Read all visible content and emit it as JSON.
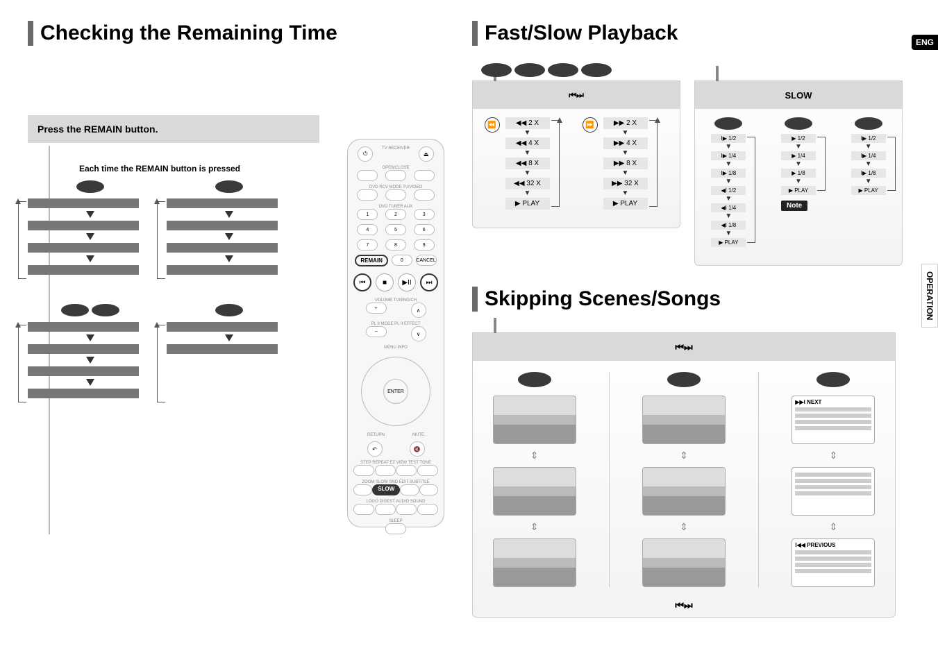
{
  "lang_badge": "ENG",
  "side_tab": "OPERATION",
  "left": {
    "title": "Checking the Remaining Time",
    "instruction": "Press the REMAIN button.",
    "sub_instruction": "Each time the REMAIN button is pressed",
    "blocks": [
      {
        "pills": 1,
        "rows": 4
      },
      {
        "pills": 1,
        "rows": 4
      },
      {
        "pills": 2,
        "rows": 4
      },
      {
        "pills": 1,
        "rows": 2
      }
    ]
  },
  "remote": {
    "top_labels": [
      "OPEN/CLOSE"
    ],
    "mode_row": [
      "TV",
      "RECEIVER"
    ],
    "src_row1": [
      "DVD RCV",
      "MODE",
      "TV/VIDEO"
    ],
    "src_row2": [
      "DVD",
      "TUNER",
      "AUX"
    ],
    "numpad": [
      [
        "1",
        "2",
        "3"
      ],
      [
        "4",
        "5",
        "6"
      ],
      [
        "7",
        "8",
        "9"
      ]
    ],
    "remain_row": {
      "remain": "REMAIN",
      "zero": "0",
      "cancel": "CANCEL"
    },
    "transport": {
      "prev": "⏮",
      "stop": "■",
      "play": "▶II",
      "next": "⏭"
    },
    "vol_labels": [
      "VOLUME",
      "TUNING/CH"
    ],
    "plii_left": "PL II MODE",
    "plii_right": "PL II EFFECT",
    "dpad_center": "ENTER",
    "return": "RETURN",
    "mute": "MUTE",
    "menu": "MENU",
    "info": "INFO",
    "bottom_grid": [
      [
        "STEP",
        "REPEAT",
        "EZ VIEW",
        "TEST TONE"
      ],
      [
        "ZOOM",
        "SLOW",
        "SND EDIT",
        "SUBTITLE"
      ],
      [
        "LOGO",
        "DIGEST",
        "AUDIO",
        "SOUND"
      ]
    ],
    "sleep": "SLEEP",
    "highlight_transport": [
      "prev",
      "next"
    ],
    "highlight_remain": true,
    "highlight_slow": true
  },
  "right": {
    "title_fast": "Fast/Slow Playback",
    "title_skip": "Skipping Scenes/Songs",
    "fast_panel": {
      "head_icons": "⏮⏭",
      "head_pills": 4,
      "rew": {
        "icon": "⏪",
        "steps": [
          "◀◀  2 X",
          "◀◀  4 X",
          "◀◀  8 X",
          "◀◀  32 X",
          "▶  PLAY"
        ]
      },
      "ff": {
        "icon": "⏩",
        "steps": [
          "▶▶  2 X",
          "▶▶  4 X",
          "▶▶  8 X",
          "▶▶  32 X",
          "▶  PLAY"
        ]
      }
    },
    "slow_panel": {
      "head_label": "SLOW",
      "head_pills_groups": [
        1,
        1,
        1
      ],
      "columns": [
        {
          "steps": [
            "I▶  1/2",
            "I▶  1/4",
            "I▶  1/8",
            "◀I  1/2",
            "◀I  1/4",
            "◀I  1/8",
            "▶  PLAY"
          ]
        },
        {
          "steps": [
            "▶  1/2",
            "▶  1/4",
            "▶  1/8",
            "▶  PLAY"
          ],
          "note": "Note"
        },
        {
          "steps": [
            "I▶  1/2",
            "I▶  1/4",
            "I▶  1/8",
            "▶  PLAY"
          ]
        }
      ]
    },
    "skip_panel": {
      "head_icons": "⏮⏭",
      "foot_icons": "⏮⏭",
      "columns": [
        {
          "pills": 1,
          "thumbs": [
            "img",
            "img",
            "img"
          ]
        },
        {
          "pills": 1,
          "thumbs": [
            "img",
            "img",
            "img"
          ]
        },
        {
          "pills": 1,
          "screens": [
            {
              "hdr": "▶▶I NEXT"
            },
            {
              "hdr": ""
            },
            {
              "hdr": "I◀◀ PREVIOUS"
            }
          ]
        }
      ]
    }
  },
  "colors": {
    "bar": "#6a6a6a",
    "panel_head": "#d9d9d9",
    "pill": "#3a3a3a",
    "speed_bg": "#e6e6e6",
    "rule": "#bbbbbb"
  }
}
